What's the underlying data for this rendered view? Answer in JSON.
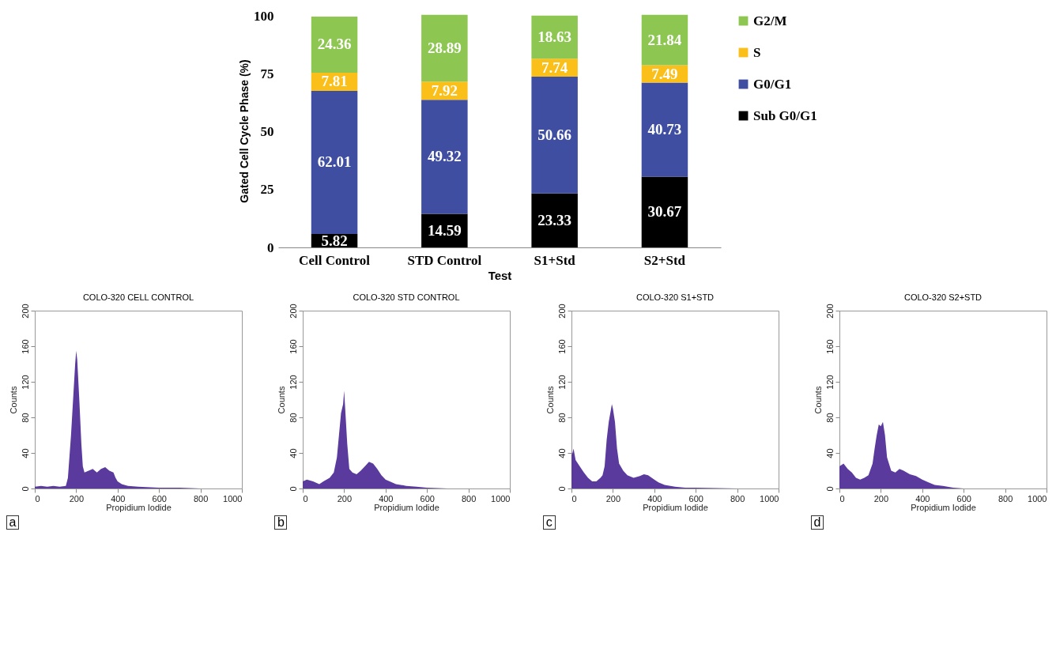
{
  "chart_data": [
    {
      "type": "bar",
      "stacked": true,
      "categories": [
        "Cell Control",
        "STD Control",
        "S1+Std",
        "S2+Std"
      ],
      "xlabel": "Test",
      "ylabel": "Gated Cell Cycle Phase (%)",
      "ylim": [
        0,
        101
      ],
      "yticks": [
        0,
        25,
        50,
        75,
        100
      ],
      "legend": "right",
      "data_labels": true,
      "series": [
        {
          "name": "Sub G0/G1",
          "color": "#000000",
          "values": [
            5.82,
            14.59,
            23.33,
            30.67
          ]
        },
        {
          "name": "G0/G1",
          "color": "#3f4ea1",
          "values": [
            62.01,
            49.32,
            50.66,
            40.73
          ]
        },
        {
          "name": "S",
          "color": "#fbbf1a",
          "values": [
            7.81,
            7.92,
            7.74,
            7.49
          ]
        },
        {
          "name": "G2/M",
          "color": "#8dc751",
          "values": [
            24.36,
            28.89,
            18.63,
            21.84
          ]
        }
      ]
    },
    {
      "type": "area",
      "title": "COLO-320 CELL CONTROL",
      "xlabel": "Propidium Iodide",
      "ylabel": "Counts",
      "xlim": [
        0,
        1000
      ],
      "xticks": [
        0,
        200,
        400,
        600,
        800,
        1000
      ],
      "ylim": [
        0,
        200
      ],
      "yticks": [
        0,
        40,
        80,
        120,
        160,
        200
      ],
      "annotations": [
        "a"
      ],
      "series": [
        {
          "color": "#5b3a9e",
          "x": [
            0,
            30,
            60,
            90,
            120,
            150,
            160,
            175,
            185,
            195,
            200,
            205,
            215,
            225,
            232,
            240,
            260,
            280,
            300,
            320,
            340,
            360,
            380,
            390,
            400,
            420,
            450,
            500,
            600,
            700,
            800,
            1000
          ],
          "values": [
            2,
            3,
            2,
            3,
            2,
            3,
            12,
            60,
            100,
            140,
            155,
            145,
            100,
            50,
            25,
            18,
            20,
            22,
            18,
            22,
            24,
            20,
            18,
            12,
            8,
            5,
            3,
            2,
            1,
            1,
            0,
            0
          ]
        }
      ]
    },
    {
      "type": "area",
      "title": "COLO-320 STD CONTROL",
      "xlabel": "Propidium Iodide",
      "ylabel": "Counts",
      "xlim": [
        0,
        1000
      ],
      "xticks": [
        0,
        200,
        400,
        600,
        800,
        1000
      ],
      "ylim": [
        0,
        200
      ],
      "yticks": [
        0,
        40,
        80,
        120,
        160,
        200
      ],
      "annotations": [
        "b"
      ],
      "series": [
        {
          "color": "#5b3a9e",
          "x": [
            0,
            20,
            50,
            80,
            100,
            130,
            150,
            165,
            175,
            185,
            195,
            200,
            205,
            215,
            225,
            240,
            260,
            280,
            300,
            320,
            340,
            360,
            380,
            400,
            420,
            450,
            500,
            550,
            600,
            700,
            1000
          ],
          "values": [
            8,
            10,
            8,
            5,
            8,
            12,
            18,
            35,
            60,
            85,
            95,
            110,
            90,
            50,
            22,
            18,
            16,
            20,
            25,
            30,
            28,
            22,
            15,
            10,
            8,
            5,
            3,
            2,
            1,
            0,
            0
          ]
        }
      ]
    },
    {
      "type": "area",
      "title": "COLO-320 S1+STD",
      "xlabel": "Propidium Iodide",
      "ylabel": "Counts",
      "xlim": [
        0,
        1000
      ],
      "xticks": [
        0,
        200,
        400,
        600,
        800,
        1000
      ],
      "ylim": [
        0,
        200
      ],
      "yticks": [
        0,
        40,
        80,
        120,
        160,
        200
      ],
      "annotations": [
        "c"
      ],
      "series": [
        {
          "color": "#5b3a9e",
          "x": [
            0,
            5,
            10,
            20,
            40,
            60,
            80,
            100,
            120,
            140,
            150,
            160,
            170,
            180,
            190,
            195,
            200,
            210,
            220,
            230,
            250,
            270,
            300,
            330,
            350,
            370,
            400,
            420,
            450,
            500,
            550,
            600,
            800,
            1000
          ],
          "values": [
            38,
            40,
            45,
            32,
            25,
            18,
            12,
            8,
            8,
            12,
            15,
            25,
            55,
            75,
            88,
            95,
            90,
            75,
            45,
            28,
            20,
            15,
            12,
            14,
            16,
            15,
            10,
            7,
            4,
            2,
            1,
            1,
            0,
            0
          ]
        }
      ]
    },
    {
      "type": "area",
      "title": "COLO-320 S2+STD",
      "xlabel": "Propidium Iodide",
      "ylabel": "Counts",
      "xlim": [
        0,
        1000
      ],
      "xticks": [
        0,
        200,
        400,
        600,
        800,
        1000
      ],
      "ylim": [
        0,
        200
      ],
      "yticks": [
        0,
        40,
        80,
        120,
        160,
        200
      ],
      "annotations": [
        "d"
      ],
      "series": [
        {
          "color": "#5b3a9e",
          "x": [
            0,
            20,
            40,
            60,
            80,
            100,
            120,
            140,
            160,
            170,
            180,
            190,
            200,
            210,
            220,
            230,
            250,
            270,
            290,
            310,
            340,
            370,
            400,
            430,
            460,
            500,
            550,
            600,
            1000
          ],
          "values": [
            25,
            28,
            22,
            18,
            12,
            10,
            12,
            15,
            28,
            45,
            60,
            72,
            70,
            75,
            60,
            35,
            20,
            18,
            22,
            20,
            16,
            14,
            10,
            7,
            4,
            3,
            1,
            0,
            0
          ]
        }
      ]
    }
  ]
}
